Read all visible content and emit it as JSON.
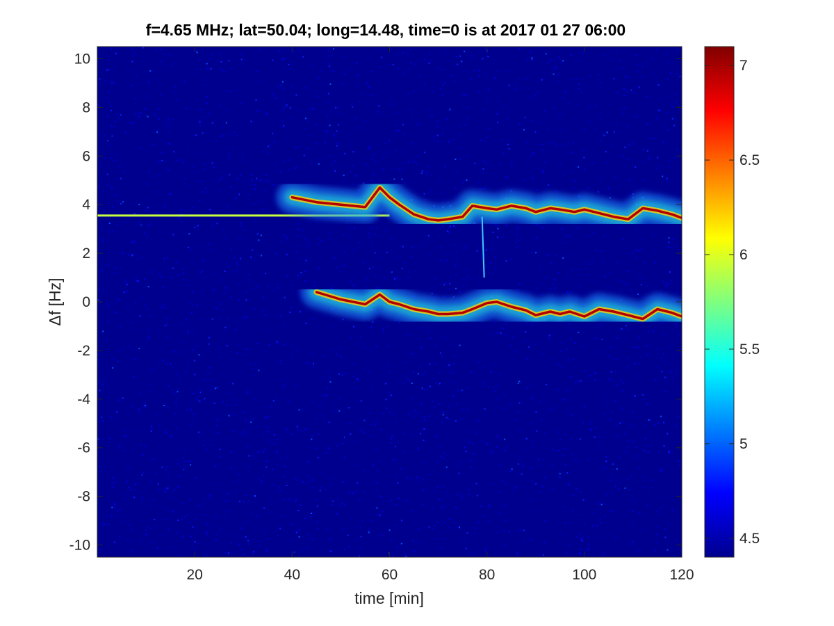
{
  "chart_data": {
    "type": "heatmap",
    "title": "f=4.65 MHz;  lat=50.04; long=14.48, time=0 is at 2017 01 27 06:00",
    "xlabel": "time [min]",
    "ylabel": "Δf [Hz]",
    "xlim": [
      0,
      120
    ],
    "ylim": [
      -10.5,
      10.5
    ],
    "x_ticks": [
      20,
      40,
      60,
      80,
      100,
      120
    ],
    "y_ticks": [
      10,
      8,
      6,
      4,
      2,
      0,
      -2,
      -4,
      -6,
      -8,
      -10
    ],
    "colormap": "jet",
    "clim": [
      4.4,
      7.1
    ],
    "colorbar_ticks": [
      7,
      6.5,
      6,
      5.5,
      5,
      4.5
    ],
    "grid": false,
    "features": [
      {
        "kind": "constant-line",
        "y": 3.55,
        "x_range": [
          0,
          60
        ],
        "intensity": 6.2
      },
      {
        "kind": "upper-trace",
        "points": [
          [
            40,
            4.3
          ],
          [
            45,
            4.1
          ],
          [
            50,
            4.0
          ],
          [
            55,
            3.9
          ],
          [
            58,
            4.7
          ],
          [
            60,
            4.3
          ],
          [
            62,
            4.0
          ],
          [
            65,
            3.6
          ],
          [
            68,
            3.4
          ],
          [
            70,
            3.35
          ],
          [
            72,
            3.4
          ],
          [
            75,
            3.5
          ],
          [
            77,
            3.95
          ],
          [
            80,
            3.85
          ],
          [
            82,
            3.8
          ],
          [
            85,
            3.95
          ],
          [
            88,
            3.85
          ],
          [
            90,
            3.7
          ],
          [
            93,
            3.85
          ],
          [
            95,
            3.8
          ],
          [
            98,
            3.7
          ],
          [
            100,
            3.8
          ],
          [
            103,
            3.65
          ],
          [
            106,
            3.5
          ],
          [
            109,
            3.4
          ],
          [
            112,
            3.85
          ],
          [
            115,
            3.75
          ],
          [
            118,
            3.6
          ],
          [
            120,
            3.45
          ]
        ]
      },
      {
        "kind": "lower-trace",
        "points": [
          [
            45,
            0.4
          ],
          [
            50,
            0.1
          ],
          [
            55,
            -0.1
          ],
          [
            58,
            0.3
          ],
          [
            60,
            0.0
          ],
          [
            62,
            -0.1
          ],
          [
            65,
            -0.3
          ],
          [
            68,
            -0.4
          ],
          [
            70,
            -0.5
          ],
          [
            72,
            -0.5
          ],
          [
            75,
            -0.45
          ],
          [
            77,
            -0.3
          ],
          [
            80,
            -0.05
          ],
          [
            82,
            0.0
          ],
          [
            85,
            -0.2
          ],
          [
            88,
            -0.35
          ],
          [
            90,
            -0.55
          ],
          [
            93,
            -0.4
          ],
          [
            95,
            -0.5
          ],
          [
            97,
            -0.4
          ],
          [
            100,
            -0.6
          ],
          [
            103,
            -0.3
          ],
          [
            106,
            -0.4
          ],
          [
            109,
            -0.55
          ],
          [
            112,
            -0.7
          ],
          [
            115,
            -0.3
          ],
          [
            118,
            -0.45
          ],
          [
            120,
            -0.6
          ]
        ]
      },
      {
        "kind": "vertical-streak",
        "x": 79,
        "y_range": [
          1.0,
          3.5
        ]
      }
    ]
  }
}
